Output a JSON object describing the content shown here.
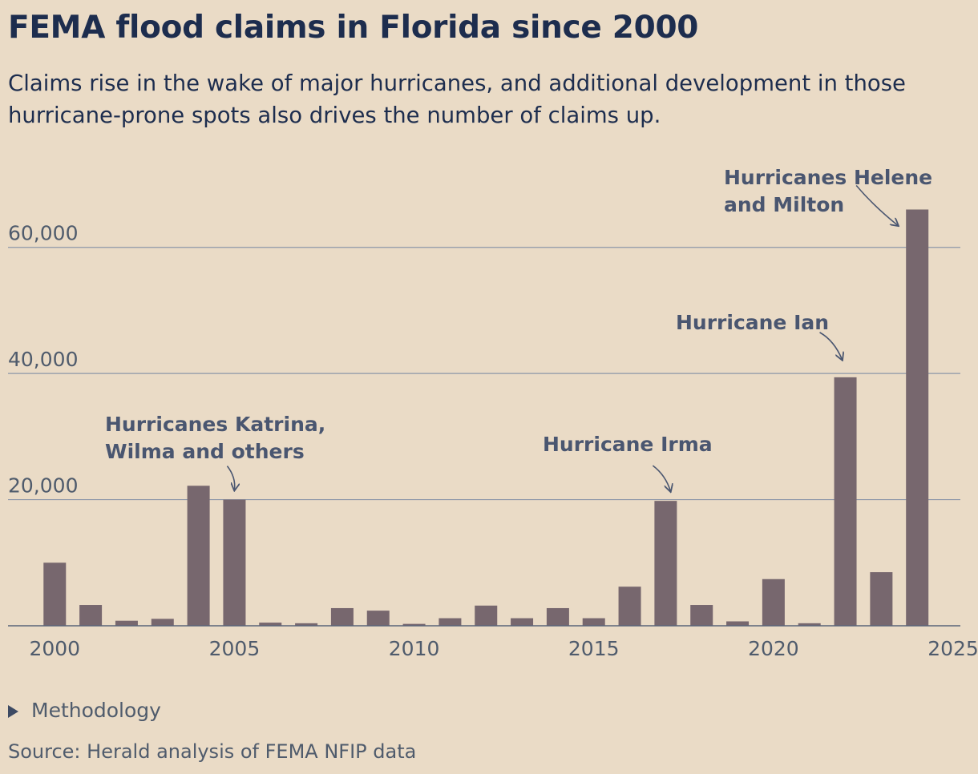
{
  "header": {
    "title": "FEMA flood claims in Florida since 2000",
    "subtitle": "Claims rise in the wake of major hurricanes, and additional development in those hurricane-prone spots also drives the number of claims up."
  },
  "footer": {
    "methodology_label": "Methodology",
    "source": "Source: Herald analysis of FEMA NFIP data"
  },
  "colors": {
    "bar": "#77676e",
    "gridline": "#8d97a8",
    "axis": "#5a6478",
    "tick_text": "#4f5b6c",
    "annotation_text": "#4a5670",
    "background": "#eadbc6",
    "title": "#1d2d4e"
  },
  "chart_data": {
    "type": "bar",
    "title": "FEMA flood claims in Florida since 2000",
    "xlabel": "",
    "ylabel": "",
    "categories": [
      "2000",
      "2001",
      "2002",
      "2003",
      "2004",
      "2005",
      "2006",
      "2007",
      "2008",
      "2009",
      "2010",
      "2011",
      "2012",
      "2013",
      "2014",
      "2015",
      "2016",
      "2017",
      "2018",
      "2019",
      "2020",
      "2021",
      "2022",
      "2023",
      "2024"
    ],
    "values": [
      10000,
      3300,
      800,
      1100,
      22200,
      20000,
      500,
      400,
      2800,
      2400,
      300,
      1200,
      3200,
      1200,
      2800,
      1200,
      6200,
      19800,
      3300,
      700,
      7400,
      400,
      39400,
      8500,
      66000
    ],
    "ylim": [
      0,
      70000
    ],
    "xlim": [
      1998.7,
      2025.2
    ],
    "yticks": [
      20000,
      40000,
      60000
    ],
    "ytick_labels": [
      "20,000",
      "40,000",
      "60,000"
    ],
    "xticks": [
      2000,
      2005,
      2010,
      2015,
      2020,
      2025
    ],
    "xtick_labels": [
      "2000",
      "2005",
      "2010",
      "2015",
      "2020",
      "2025"
    ],
    "grid": true,
    "legend": "none",
    "annotations": [
      {
        "lines": [
          "Hurricanes Katrina,",
          "Wilma and others"
        ],
        "year": 2005
      },
      {
        "lines": [
          "Hurricane Irma"
        ],
        "year": 2017
      },
      {
        "lines": [
          "Hurricane Ian"
        ],
        "year": 2022
      },
      {
        "lines": [
          "Hurricanes Helene",
          "and Milton"
        ],
        "year": 2024
      }
    ]
  }
}
